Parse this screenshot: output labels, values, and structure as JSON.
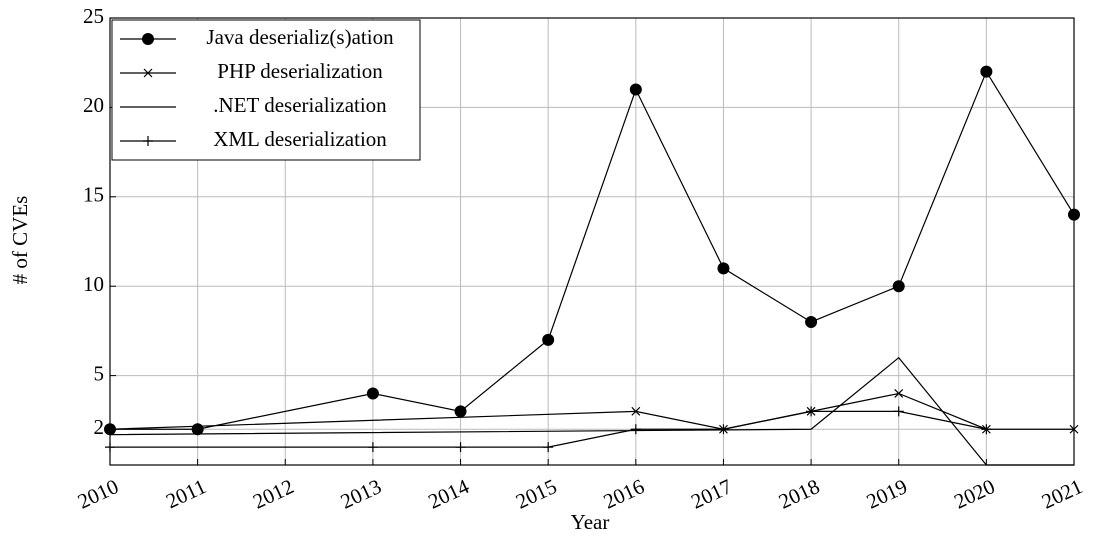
{
  "chart_data": {
    "type": "line",
    "y_label": "# of CVEs",
    "x_label": "Year",
    "xlim": [
      2010,
      2021
    ],
    "xticks": [
      2010,
      2011,
      2012,
      2013,
      2014,
      2015,
      2016,
      2017,
      2018,
      2019,
      2020,
      2021
    ],
    "ylim": [
      0,
      25
    ],
    "yticks": [
      2,
      5,
      10,
      15,
      20,
      25
    ],
    "grid": true,
    "legend": "top-left",
    "series": [
      {
        "name": "Java deserializ(s)ation",
        "color": "#000000",
        "marker": "circle",
        "x": [
          2010,
          2011,
          2013,
          2014,
          2015,
          2016,
          2017,
          2018,
          2019,
          2020,
          2021
        ],
        "values": [
          2,
          2,
          4,
          3,
          7,
          21,
          11,
          8,
          10,
          22,
          14
        ]
      },
      {
        "name": "PHP deserialization",
        "color": "#000000",
        "marker": "x",
        "x": [
          2010,
          2016,
          2017,
          2018,
          2019,
          2020,
          2021
        ],
        "values": [
          2,
          3,
          2,
          3,
          4,
          2,
          2
        ]
      },
      {
        "name": ".NET deserialization",
        "color": "#000000",
        "marker": "none",
        "x": [
          2010,
          2018,
          2019,
          2020,
          2021
        ],
        "values": [
          1.7,
          2,
          6,
          0,
          0
        ]
      },
      {
        "name": "XML deserialization",
        "color": "#000000",
        "marker": "plus",
        "x": [
          2010,
          2013,
          2014,
          2015,
          2016,
          2017,
          2018,
          2019,
          2020
        ],
        "values": [
          1,
          1,
          1,
          1,
          2,
          2,
          3,
          3,
          2
        ]
      }
    ]
  }
}
